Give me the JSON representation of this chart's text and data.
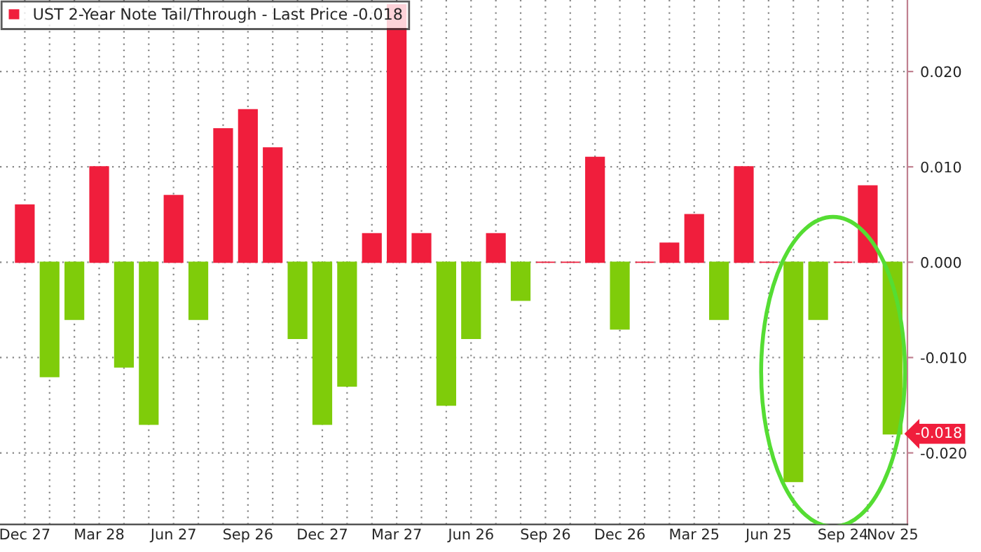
{
  "chart_data": {
    "type": "bar",
    "categories": [
      "Dec 27",
      null,
      null,
      "Mar 28",
      null,
      null,
      "Jun 27",
      null,
      null,
      "Sep 26",
      null,
      null,
      "Dec 27",
      null,
      null,
      "Mar 27",
      null,
      null,
      "Jun 26",
      null,
      null,
      "Sep 26",
      null,
      null,
      "Dec 26",
      null,
      null,
      "Mar 25",
      null,
      null,
      "Jun 25",
      null,
      null,
      "Sep 24",
      null,
      "Nov 25"
    ],
    "series": [
      {
        "name": "UST 2-Year Note Tail/Through - Last Price -0.018",
        "color": "#f01e3c",
        "values": [
          0.006,
          -0.012,
          -0.006,
          0.01,
          -0.011,
          -0.017,
          0.007,
          -0.006,
          0.014,
          0.016,
          0.012,
          -0.008,
          -0.017,
          -0.013,
          0.003,
          0.027,
          0.003,
          -0.015,
          -0.008,
          0.003,
          -0.004,
          0,
          0,
          0.011,
          -0.007,
          0,
          0.002,
          0.005,
          -0.006,
          0.01,
          0,
          -0.023,
          -0.006,
          0,
          0.008,
          -0.018
        ],
        "colors": [
          "#f01e3c",
          "#7fcc0a",
          "#7fcc0a",
          "#f01e3c",
          "#7fcc0a",
          "#7fcc0a",
          "#f01e3c",
          "#7fcc0a",
          "#f01e3c",
          "#f01e3c",
          "#f01e3c",
          "#7fcc0a",
          "#7fcc0a",
          "#7fcc0a",
          "#f01e3c",
          "#f01e3c",
          "#f01e3c",
          "#7fcc0a",
          "#7fcc0a",
          "#f01e3c",
          "#7fcc0a",
          "#f01e3c",
          "#f01e3c",
          "#f01e3c",
          "#7fcc0a",
          "#f01e3c",
          "#f01e3c",
          "#f01e3c",
          "#7fcc0a",
          "#f01e3c",
          "#f01e3c",
          "#7fcc0a",
          "#7fcc0a",
          "#f01e3c",
          "#f01e3c",
          "#7fcc0a"
        ]
      }
    ],
    "ylim": [
      -0.0275,
      0.0275
    ],
    "yticks": [
      {
        "value": -0.02,
        "label": "-0.020"
      },
      {
        "value": -0.01,
        "label": "-0.010"
      },
      {
        "value": 0,
        "label": "0.000"
      },
      {
        "value": 0.01,
        "label": "0.010"
      },
      {
        "value": 0.02,
        "label": "0.020"
      }
    ],
    "annotations": [
      "-0.018"
    ],
    "grid": true,
    "legend": "top left"
  }
}
